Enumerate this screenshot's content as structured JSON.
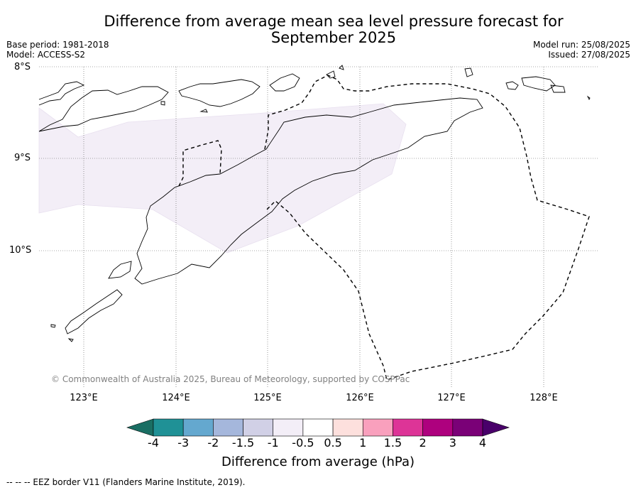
{
  "title_line1": "Difference from average mean sea level pressure forecast for",
  "title_line2": "September 2025",
  "base_period": "Base period: 1981-2018",
  "model": "Model: ACCESS-S2",
  "model_run": "Model run: 25/08/2025",
  "issued": "Issued: 27/08/2025",
  "lat_labels": [
    "8°S",
    "9°S",
    "10°S"
  ],
  "lon_labels": [
    "123°E",
    "124°E",
    "125°E",
    "126°E",
    "127°E",
    "128°E"
  ],
  "copyright": "© Commonwealth of Australia 2025, Bureau of Meteorology, supported by COSPPac",
  "colorbar": {
    "ticks": [
      "-4",
      "-3",
      "-2",
      "-1.5",
      "-1",
      "-0.5",
      "0.5",
      "1",
      "1.5",
      "2",
      "3",
      "4"
    ],
    "colors": [
      "#1a6e63",
      "#1f9196",
      "#64a8cf",
      "#a5b7dc",
      "#d1d0e6",
      "#f3eef7",
      "#ffffff",
      "#fde0dd",
      "#f9a0bd",
      "#dd3497",
      "#ae017e",
      "#7a0177",
      "#49006a"
    ],
    "label": "Difference from average (hPa)"
  },
  "map": {
    "anomaly_fill_color": "#f3eef7",
    "anomaly_class": "-1 to -0.5 hPa"
  },
  "footnote": "--  --  -- EEZ border V11 (Flanders Marine Institute, 2019)."
}
